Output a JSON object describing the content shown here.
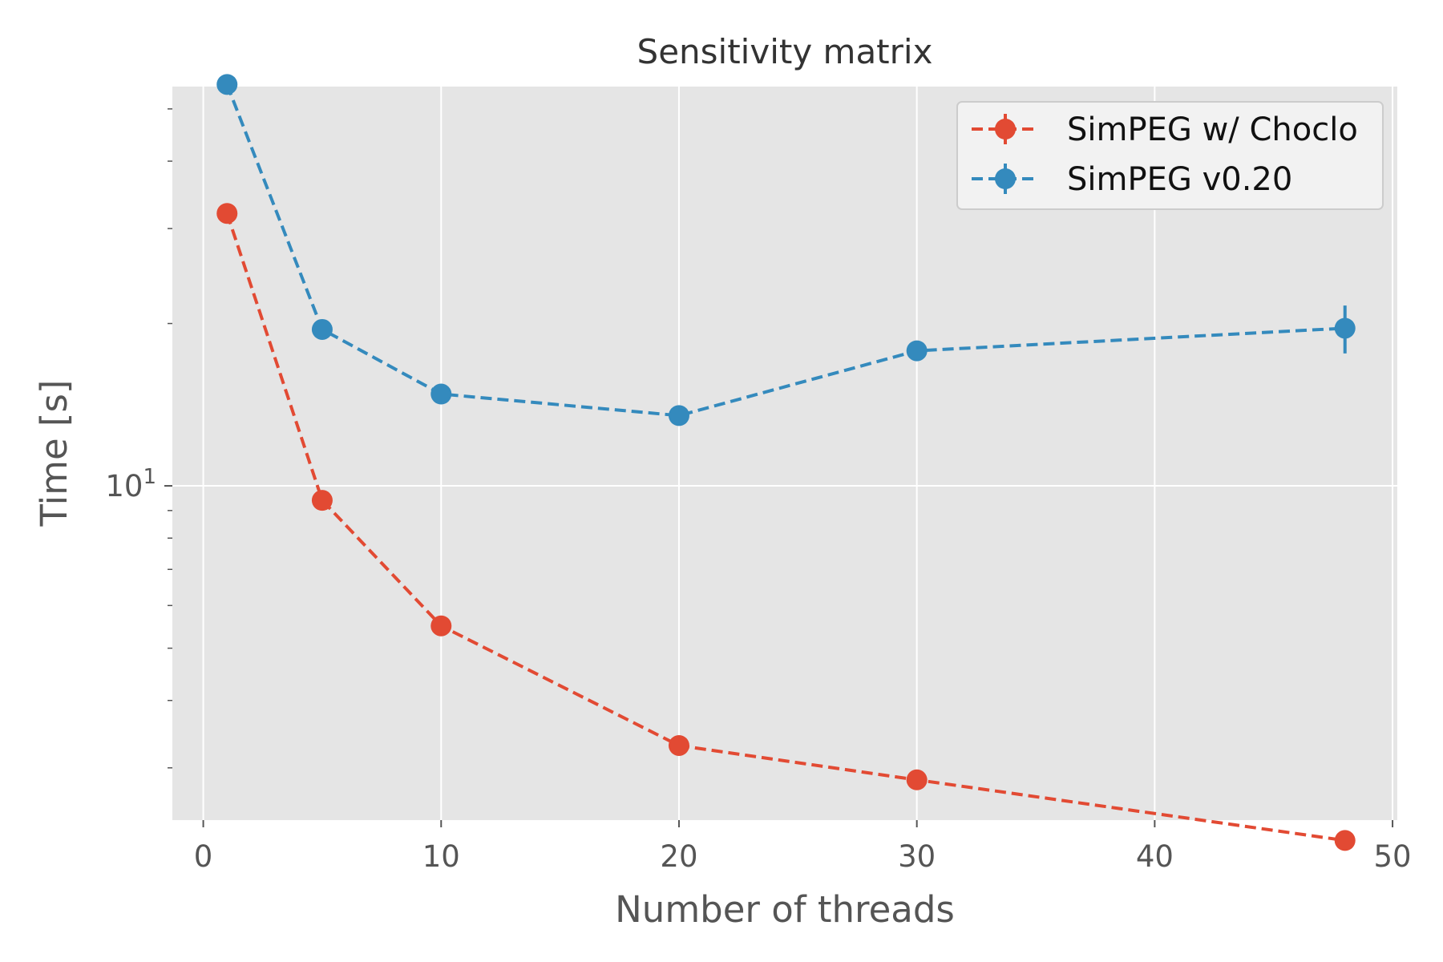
{
  "chart_data": {
    "type": "line",
    "title": "Sensitivity matrix",
    "xlabel": "Number of threads",
    "ylabel": "Time [s]",
    "xlim": [
      -1.3,
      50.2
    ],
    "ylim": [
      2.4,
      55
    ],
    "yscale": "log",
    "grid": true,
    "legend_position": "top-right",
    "x_ticks": [
      0,
      10,
      20,
      30,
      40,
      50
    ],
    "y_major_ticks": [
      {
        "value": 10,
        "base": "10",
        "exponent": "1"
      }
    ],
    "y_minor_ticks": [
      3,
      4,
      5,
      6,
      7,
      8,
      9,
      20,
      30,
      40,
      50
    ],
    "x": [
      1,
      5,
      10,
      20,
      30,
      48
    ],
    "series": [
      {
        "name": "SimPEG w/ Choclo",
        "color": "#e24a33",
        "values": [
          32,
          9.4,
          5.5,
          3.3,
          2.85,
          2.2
        ],
        "errors": [
          0,
          0,
          0,
          0,
          0,
          0
        ]
      },
      {
        "name": "SimPEG v0.20",
        "color": "#348abd",
        "values": [
          55.5,
          19.5,
          14.8,
          13.5,
          17.8,
          19.6
        ],
        "errors": [
          0,
          0,
          0,
          0,
          0,
          2.0
        ]
      }
    ],
    "colors": {
      "plot_background": "#e5e5e5",
      "grid": "#ffffff",
      "legend_background": "#f2f2f2",
      "legend_border": "#cccccc"
    }
  }
}
